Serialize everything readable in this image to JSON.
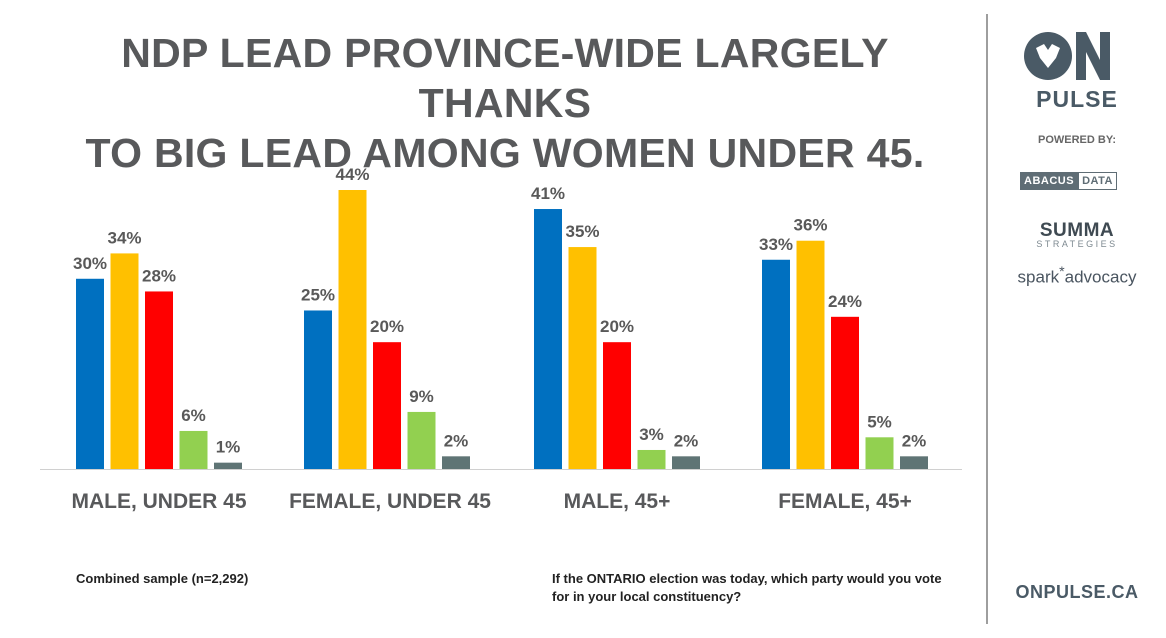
{
  "title_lines": [
    "NDP LEAD PROVINCE-WIDE LARGELY THANKS",
    "TO BIG LEAD AMONG WOMEN UNDER 45."
  ],
  "sidebar": {
    "logo_text": "ON",
    "pulse": "PULSE",
    "powered_by": "POWERED BY:",
    "abacus": [
      "ABACUS",
      "DATA"
    ],
    "summa": "SUMMA",
    "strategies": "STRATEGIES",
    "spark": "spark",
    "spark_star": "*",
    "advocacy": "advocacy",
    "site": "ONPULSE.CA",
    "brand_color": "#4a5a66"
  },
  "footnotes": {
    "sample": "Combined sample (n=2,292)",
    "question": "If the ONTARIO election was today, which party would you vote for in your local constituency?"
  },
  "chart_data": {
    "type": "bar",
    "title": "NDP LEAD PROVINCE-WIDE LARGELY THANKS TO BIG LEAD AMONG WOMEN UNDER 45.",
    "categories": [
      "MALE, UNDER 45",
      "FEMALE, UNDER 45",
      "MALE, 45+",
      "FEMALE, 45+"
    ],
    "unit": "%",
    "ylim": [
      0,
      46
    ],
    "grid": false,
    "legend": "none",
    "series": [
      {
        "color": "#0070c0",
        "values": [
          30,
          25,
          41,
          33
        ]
      },
      {
        "color": "#ffc000",
        "values": [
          34,
          44,
          35,
          36
        ]
      },
      {
        "color": "#ff0000",
        "values": [
          28,
          20,
          20,
          24
        ]
      },
      {
        "color": "#92d050",
        "values": [
          6,
          9,
          3,
          5
        ]
      },
      {
        "color": "#5f7475",
        "values": [
          1,
          2,
          2,
          2
        ]
      }
    ]
  }
}
